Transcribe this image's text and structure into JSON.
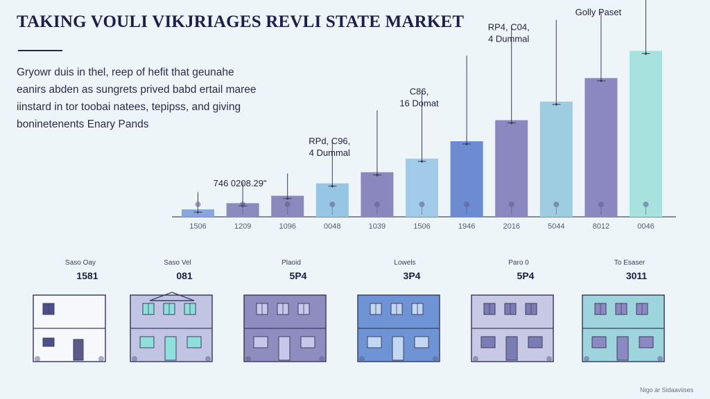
{
  "title": "TAKING VOULI VIKJRIAGES REVLI STATE MARKET",
  "intro_lines": [
    "Gryowr duis in thel, reep of hefit that geunahe",
    "eanirs abden as sungrets prived babd ertail maree",
    "iinstard in tor toobai natees, tepipss, and giving",
    "boninetenents Enary Pands"
  ],
  "chart_data": {
    "type": "bar",
    "categories": [
      "1506",
      "1209",
      "1096",
      "0048",
      "1039",
      "1506",
      "1946",
      "2016",
      "5044",
      "8012",
      "0046"
    ],
    "values": [
      6,
      11,
      17,
      27,
      36,
      47,
      61,
      78,
      93,
      112,
      134
    ],
    "colors": [
      "#8aa6dc",
      "#8a8bbe",
      "#8a88bc",
      "#97c6e4",
      "#8a87bf",
      "#a1cbe8",
      "#6d8bd0",
      "#8b87bf",
      "#9ecde2",
      "#8b87c0",
      "#a8e2de"
    ],
    "whisker_tops": [
      20,
      28,
      35,
      62,
      86,
      102,
      130,
      154,
      159,
      166,
      176
    ],
    "ylim": [
      0,
      175
    ],
    "annotations": [
      {
        "lines": [
          "746 0208.29\""
        ],
        "bar": 1
      },
      {
        "lines": [
          "RPd, C96,",
          "4 Dummal"
        ],
        "bar": 3
      },
      {
        "lines": [
          "C86,",
          "16 Domat"
        ],
        "bar": 5
      },
      {
        "lines": [
          "RP4, C04,",
          "4 Dummal"
        ],
        "bar": 7
      },
      {
        "lines": [
          "Golly Paset"
        ],
        "bar": 9
      }
    ]
  },
  "houses": [
    {
      "label": "Saso Oay",
      "value": "1581",
      "color": "#f6f8fb",
      "window": "#4e4f8a"
    },
    {
      "label": "Saso Vel",
      "value": "081",
      "color": "#c2c4e4",
      "window": "#8fe0dc"
    },
    {
      "label": "Plaoid",
      "value": "5P4",
      "color": "#8f8dbf",
      "window": "#c6c7ea"
    },
    {
      "label": "Lowels",
      "value": "3P4",
      "color": "#6f94d6",
      "window": "#c2d8f2"
    },
    {
      "label": "Paro 0",
      "value": "5P4",
      "color": "#c8c9e5",
      "window": "#7c7cb4"
    },
    {
      "label": "To Esaser",
      "value": "3011",
      "color": "#9ed4dc",
      "window": "#8c88c2"
    }
  ],
  "credit": "Nigo ar Sidaaviises"
}
